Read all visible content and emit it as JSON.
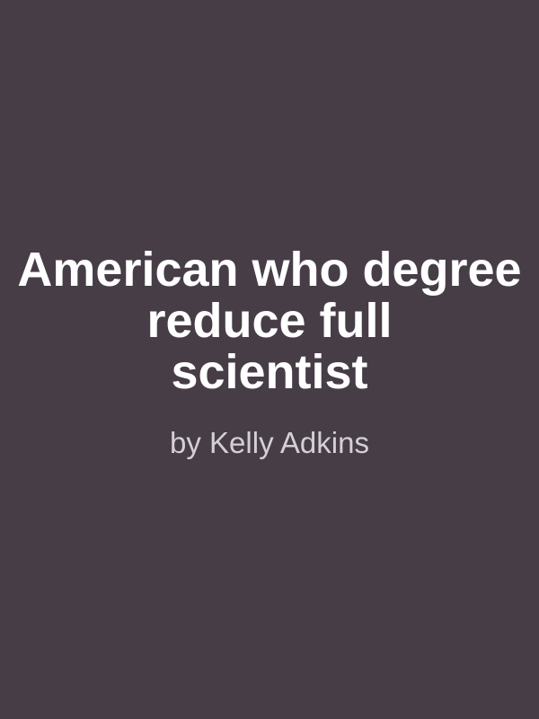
{
  "cover": {
    "background_color": "#473d47",
    "title_color": "#ffffff",
    "author_color": "#d4d0d4",
    "title_lines": [
      "American who degree",
      "reduce full",
      "scientist"
    ],
    "author": "by Kelly Adkins"
  }
}
